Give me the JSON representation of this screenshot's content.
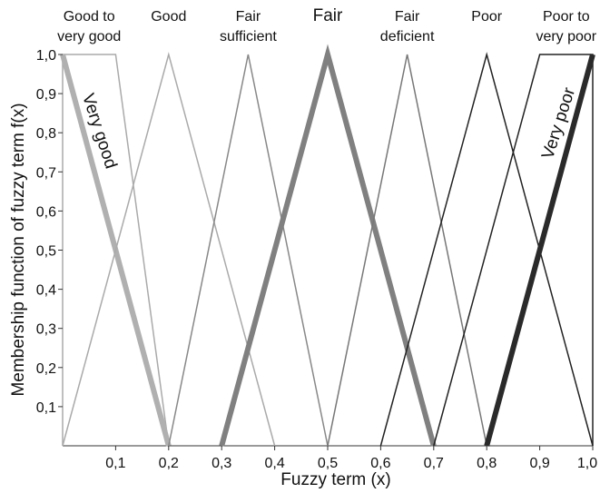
{
  "chart_data": {
    "type": "line",
    "xlabel": "Fuzzy term (x)",
    "ylabel": "Membership function of fuzzy term f(x)",
    "xlim": [
      0,
      1
    ],
    "ylim": [
      0,
      1
    ],
    "x_ticks": [
      "0,1",
      "0,2",
      "0,3",
      "0,4",
      "0,5",
      "0,6",
      "0,7",
      "0,8",
      "0,9",
      "1,0"
    ],
    "y_ticks": [
      "0,1",
      "0,2",
      "0,3",
      "0,4",
      "0,5",
      "0,6",
      "0,7",
      "0,8",
      "0,9",
      "1,0"
    ],
    "grid": false,
    "terms": [
      {
        "label": [
          "Good to",
          "very good"
        ],
        "x": 0.05
      },
      {
        "label": [
          "Good"
        ],
        "x": 0.2
      },
      {
        "label": [
          "Fair",
          "sufficient"
        ],
        "x": 0.35
      },
      {
        "label": [
          "Fair"
        ],
        "x": 0.5,
        "large": true
      },
      {
        "label": [
          "Fair",
          "deficient"
        ],
        "x": 0.65
      },
      {
        "label": [
          "Poor"
        ],
        "x": 0.8
      },
      {
        "label": [
          "Poor to",
          "very poor"
        ],
        "x": 0.95
      }
    ],
    "series": [
      {
        "color": "#aaaaaa",
        "width": 1.5,
        "x": [
          0,
          0,
          0.1,
          0.2
        ],
        "y": [
          0,
          1,
          1,
          0
        ]
      },
      {
        "color": "#b0b0b0",
        "width": 6,
        "x": [
          0,
          0.2
        ],
        "y": [
          1,
          0
        ]
      },
      {
        "color": "#aaaaaa",
        "width": 1.5,
        "x": [
          0,
          0.2,
          0.4
        ],
        "y": [
          0,
          1,
          0
        ]
      },
      {
        "color": "#888888",
        "width": 1.5,
        "x": [
          0.2,
          0.35,
          0.5
        ],
        "y": [
          0,
          1,
          0
        ]
      },
      {
        "color": "#808080",
        "width": 6,
        "x": [
          0.3,
          0.5,
          0.7
        ],
        "y": [
          0,
          1,
          0
        ]
      },
      {
        "color": "#777777",
        "width": 1.5,
        "x": [
          0.5,
          0.65,
          0.8
        ],
        "y": [
          0,
          1,
          0
        ]
      },
      {
        "color": "#222222",
        "width": 1.5,
        "x": [
          0.6,
          0.8,
          1.0
        ],
        "y": [
          0,
          1,
          0
        ]
      },
      {
        "color": "#222222",
        "width": 1.5,
        "x": [
          0.7,
          0.9,
          1.0,
          1.0
        ],
        "y": [
          0,
          1,
          1,
          0
        ]
      },
      {
        "color": "#2a2a2a",
        "width": 6,
        "x": [
          0.8,
          1.0
        ],
        "y": [
          0,
          1
        ]
      }
    ],
    "annotations": [
      {
        "text": "Very good",
        "x": 0.06,
        "y": 0.8,
        "rotate": 72
      },
      {
        "text": "Very poor",
        "x": 0.945,
        "y": 0.82,
        "rotate": -72
      }
    ]
  }
}
